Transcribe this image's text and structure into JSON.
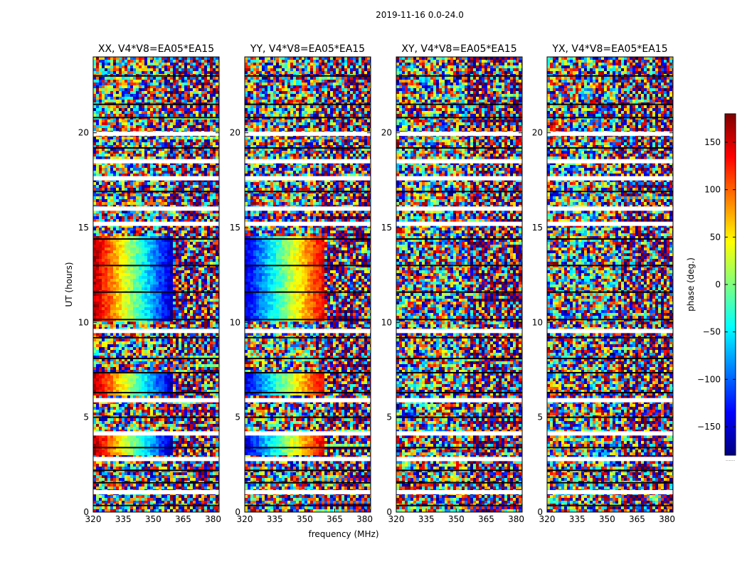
{
  "suptitle": "2019-11-16 0.0-24.0",
  "chart_data": {
    "type": "heatmap",
    "panels": [
      {
        "title": "XX, V4*V8=EA05*EA15",
        "pol": "XX"
      },
      {
        "title": "YY, V4*V8=EA05*EA15",
        "pol": "YY"
      },
      {
        "title": "XY, V4*V8=EA05*EA15",
        "pol": "XY"
      },
      {
        "title": "YX, V4*V8=EA05*EA15",
        "pol": "YX"
      }
    ],
    "xlabel": "frequency (MHz)",
    "ylabel": "UT (hours)",
    "xlim": [
      320,
      383
    ],
    "ylim": [
      0,
      24
    ],
    "xticks": [
      320,
      335,
      350,
      365,
      380
    ],
    "yticks": [
      0,
      5,
      10,
      15,
      20
    ],
    "colorbar": {
      "label": "phase (deg.)",
      "range": [
        -180,
        180
      ],
      "ticks": [
        -150,
        -100,
        -50,
        0,
        50,
        100,
        150
      ],
      "colormap": "jet",
      "under_label": "......"
    },
    "white_gaps_ut": [
      1.05,
      2.8,
      4.15,
      5.9,
      9.55,
      15.2,
      16.0,
      17.6,
      18.5,
      19.95
    ],
    "black_lines_ut": [
      0.35,
      1.55,
      2.2,
      3.4,
      5.0,
      6.3,
      7.35,
      8.1,
      9.2,
      10.15,
      11.6,
      13.0,
      14.4,
      16.9,
      19.2,
      20.8,
      21.5,
      23.0
    ]
  },
  "colors": {
    "jet_stops": [
      "#00007f",
      "#0000ff",
      "#007fff",
      "#00ffff",
      "#7fff7f",
      "#ffff00",
      "#ff7f00",
      "#ff0000",
      "#7f0000"
    ]
  }
}
